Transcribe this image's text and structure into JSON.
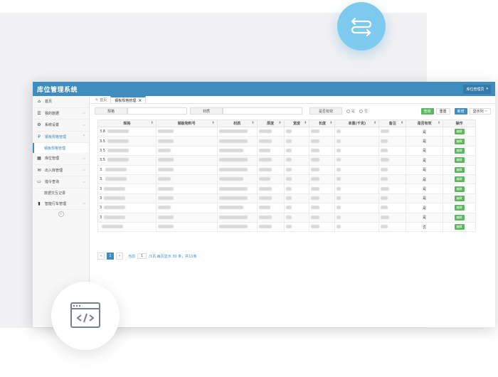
{
  "app": {
    "title": "库位管理系统",
    "user_menu": "库位管理员",
    "colors": {
      "header": "#3f8cbf",
      "accent_green": "#5cb85c",
      "bubble": "#7ec9ee"
    }
  },
  "sidebar": {
    "items": [
      {
        "label": "首页",
        "icon": "home-icon",
        "glyph": "⌂"
      },
      {
        "label": "我的数据",
        "icon": "list-icon",
        "glyph": "☰"
      },
      {
        "label": "系统设置",
        "icon": "gears-icon",
        "glyph": "⚙"
      },
      {
        "label": "钢板规格管理",
        "icon": "tag-icon",
        "glyph": "₽"
      },
      {
        "label": "钢板规格管理",
        "icon": ""
      },
      {
        "label": "库位管理",
        "icon": "grid-icon",
        "glyph": "▦"
      },
      {
        "label": "出入库管理",
        "icon": "chat-icon",
        "glyph": "✉"
      },
      {
        "label": "指令查询",
        "icon": "window-icon",
        "glyph": "▭"
      },
      {
        "label": "数据交互记录",
        "icon": ""
      },
      {
        "label": "智能行车管理",
        "icon": "bookmark-icon",
        "glyph": "▮"
      }
    ]
  },
  "tabs": {
    "home": "首页",
    "active": "钢板规格管理"
  },
  "search": {
    "spec_label": "规格",
    "material_label": "材质",
    "valid_label": "是否有效",
    "radio_yes": "是",
    "radio_no": "否",
    "query_button": "查询",
    "reset_button": "重置",
    "add_button": "新增",
    "columns_button": "显示列"
  },
  "table": {
    "headers": [
      "规格",
      "钢板物料号",
      "材质",
      "厚度",
      "宽度",
      "长度",
      "单重(千克)",
      "备注",
      "是否有效",
      "操作"
    ],
    "rows": [
      {
        "spec": "3.8",
        "valid": "是",
        "op": "编辑"
      },
      {
        "spec": "3.5",
        "valid": "是",
        "op": "编辑"
      },
      {
        "spec": "3.5",
        "valid": "是",
        "op": "编辑"
      },
      {
        "spec": "3.5",
        "valid": "是",
        "op": "编辑"
      },
      {
        "spec": "3.",
        "valid": "是",
        "op": "编辑"
      },
      {
        "spec": "3.",
        "valid": "是",
        "op": "编辑"
      },
      {
        "spec": "3",
        "valid": "是",
        "op": "编辑"
      },
      {
        "spec": "3",
        "valid": "是",
        "op": "编辑"
      },
      {
        "spec": "3",
        "valid": "是",
        "op": "编辑"
      },
      {
        "spec": "3",
        "valid": "是",
        "op": "编辑"
      },
      {
        "spec": "",
        "valid": "否",
        "op": "编辑"
      }
    ]
  },
  "pager": {
    "prev": "«",
    "current": "1",
    "next": "»",
    "page_prefix": "当前",
    "page_value": "1",
    "summary": "/1页,每页显示 30 条，共11条"
  }
}
